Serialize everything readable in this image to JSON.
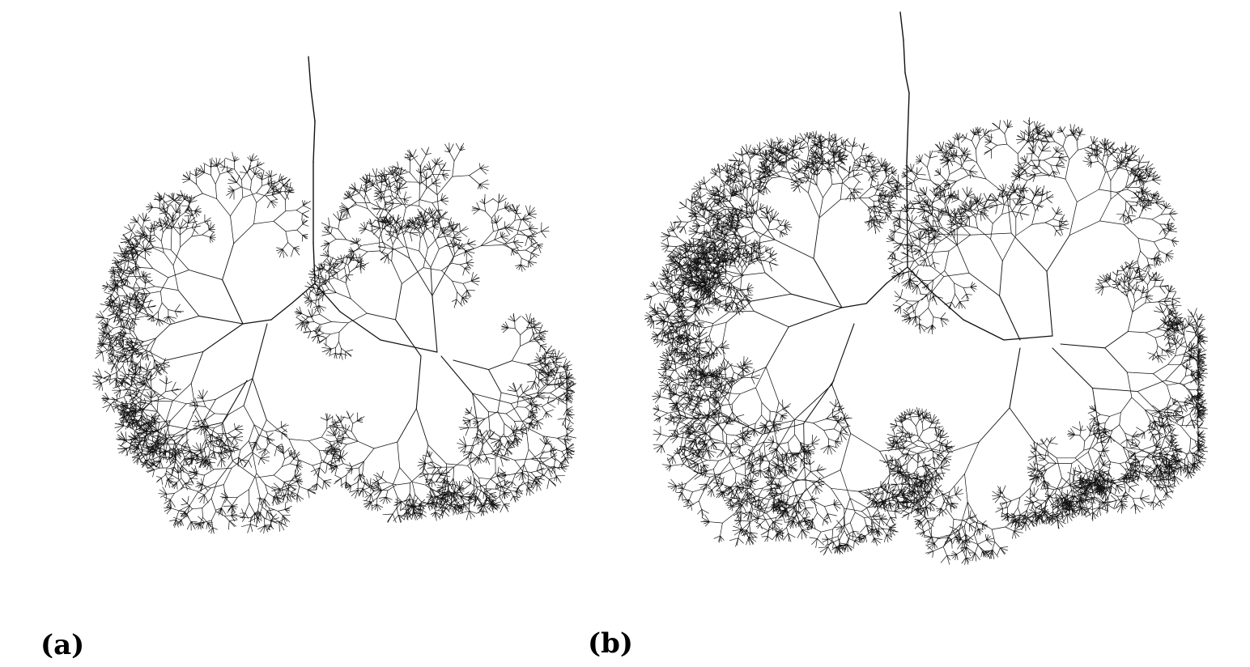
{
  "panels": [
    {
      "label": "(a)"
    },
    {
      "label": "(b)"
    }
  ],
  "style": {
    "stroke_color": "#111111",
    "background": "#ffffff"
  }
}
